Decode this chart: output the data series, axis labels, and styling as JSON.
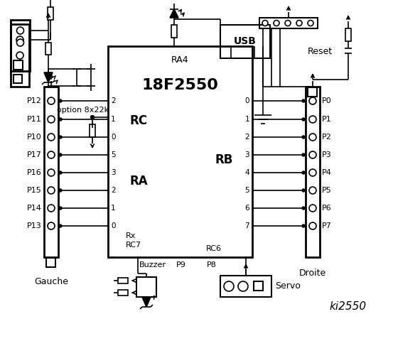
{
  "bg_color": "#ffffff",
  "ic_label": "18F2550",
  "ic_sublabel": "RA4",
  "rc_label": "RC",
  "ra_label": "RA",
  "rb_label": "RB",
  "rc_pin_nums": [
    "2",
    "1",
    "0",
    "5",
    "3",
    "2",
    "1",
    "0"
  ],
  "rb_pin_nums": [
    "0",
    "1",
    "2",
    "3",
    "4",
    "5",
    "6",
    "7"
  ],
  "left_labels": [
    "P12",
    "P11",
    "P10",
    "P17",
    "P16",
    "P15",
    "P14",
    "P13"
  ],
  "right_labels": [
    "P0",
    "P1",
    "P2",
    "P3",
    "P4",
    "P5",
    "P6",
    "P7"
  ],
  "option_text": "option 8x22k",
  "reset_text": "Reset",
  "usb_text": "USB",
  "rx_text": "Rx",
  "rc7_text": "RC7",
  "rc6_text": "RC6",
  "gauche_text": "Gauche",
  "droite_text": "Droite",
  "buzzer_text": "Buzzer",
  "p9_text": "P9",
  "p8_text": "P8",
  "servo_text": "Servo",
  "title_text": "ki2550"
}
